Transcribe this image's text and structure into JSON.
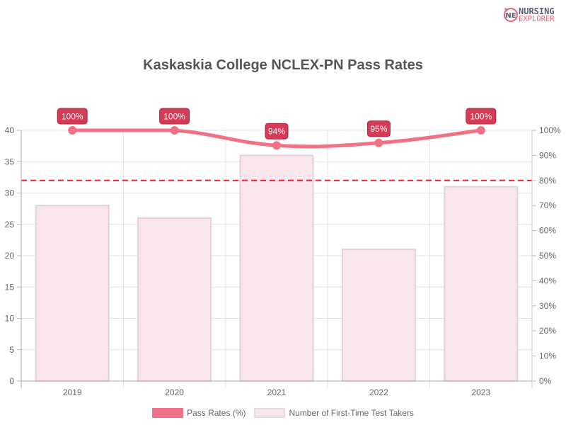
{
  "brand": {
    "line1": "NURSING",
    "line2": "EXPLORER",
    "icon": "ne-logo-icon"
  },
  "chart_data": {
    "type": "bar",
    "title": "Kaskaskia College NCLEX-PN Pass Rates",
    "categories": [
      "2019",
      "2020",
      "2021",
      "2022",
      "2023"
    ],
    "series": [
      {
        "name": "Pass Rates (%)",
        "type": "line",
        "axis": "right",
        "values": [
          100,
          100,
          94,
          95,
          100
        ],
        "labels": [
          "100%",
          "100%",
          "94%",
          "95%",
          "100%"
        ],
        "color": "#f07286"
      },
      {
        "name": "Number of First-Time Test Takers",
        "type": "bar",
        "axis": "left",
        "values": [
          28,
          26,
          36,
          21,
          31
        ],
        "color": "#f8e6ec",
        "border": "#e2d2d8"
      }
    ],
    "reference_line": {
      "value_percent": 80,
      "color": "#e8212b",
      "style": "dashed"
    },
    "y_left": {
      "ylim": [
        0,
        40
      ],
      "ticks": [
        "0",
        "5",
        "10",
        "15",
        "20",
        "25",
        "30",
        "35",
        "40"
      ]
    },
    "y_right": {
      "ylim": [
        0,
        100
      ],
      "ticks": [
        "0%",
        "10%",
        "20%",
        "30%",
        "40%",
        "50%",
        "60%",
        "70%",
        "80%",
        "90%",
        "100%"
      ]
    },
    "xlabel": "",
    "ylabel": "",
    "legend_position": "bottom",
    "grid": true
  },
  "legend": {
    "items": [
      "Pass Rates (%)",
      "Number of First-Time Test Takers"
    ]
  }
}
